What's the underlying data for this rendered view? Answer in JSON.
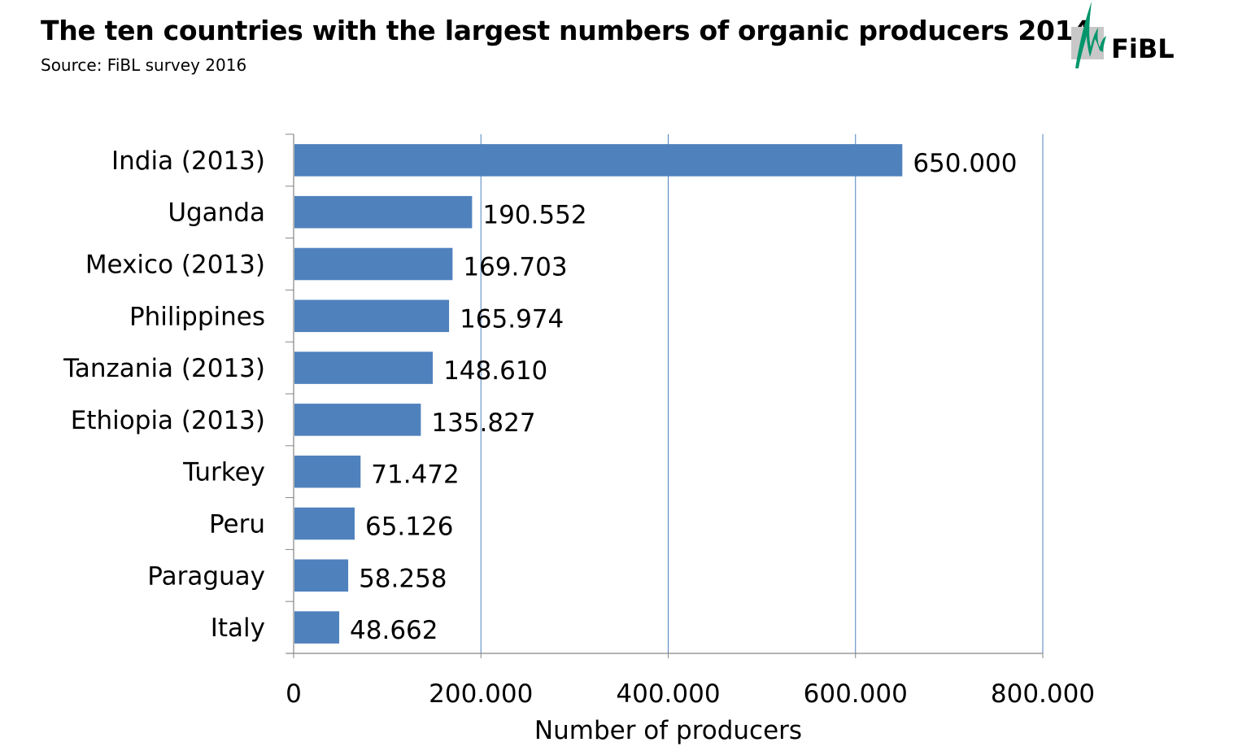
{
  "header": {
    "title": "The ten countries with the largest numbers of organic producers 2014",
    "subtitle": "Source: FiBL survey 2016",
    "logo_text": "FiBL"
  },
  "colors": {
    "bar": "#4F81BD",
    "grid": "#4F81BD",
    "axis": "#868686",
    "logo_green": "#00956B",
    "logo_gray": "#C8C8C8"
  },
  "chart_data": {
    "type": "bar",
    "orientation": "horizontal",
    "title": "The ten countries with the largest numbers of organic producers 2014",
    "subtitle": "Source: FiBL survey 2016",
    "categories": [
      "India (2013)",
      "Uganda",
      "Mexico (2013)",
      "Philippines",
      "Tanzania (2013)",
      "Ethiopia (2013)",
      "Turkey",
      "Peru",
      "Paraguay",
      "Italy"
    ],
    "values": [
      650000,
      190552,
      169703,
      165974,
      148610,
      135827,
      71472,
      65126,
      58258,
      48662
    ],
    "value_labels": [
      "650.000",
      "190.552",
      "169.703",
      "165.974",
      "148.610",
      "135.827",
      "71.472",
      "65.126",
      "58.258",
      "48.662"
    ],
    "xlabel": "Number of producers",
    "ylabel": "",
    "xlim": [
      0,
      800000
    ],
    "xticks": [
      0,
      200000,
      400000,
      600000,
      800000
    ],
    "xtick_labels": [
      "0",
      "200.000",
      "400.000",
      "600.000",
      "800.000"
    ],
    "grid": true,
    "legend": "none"
  }
}
